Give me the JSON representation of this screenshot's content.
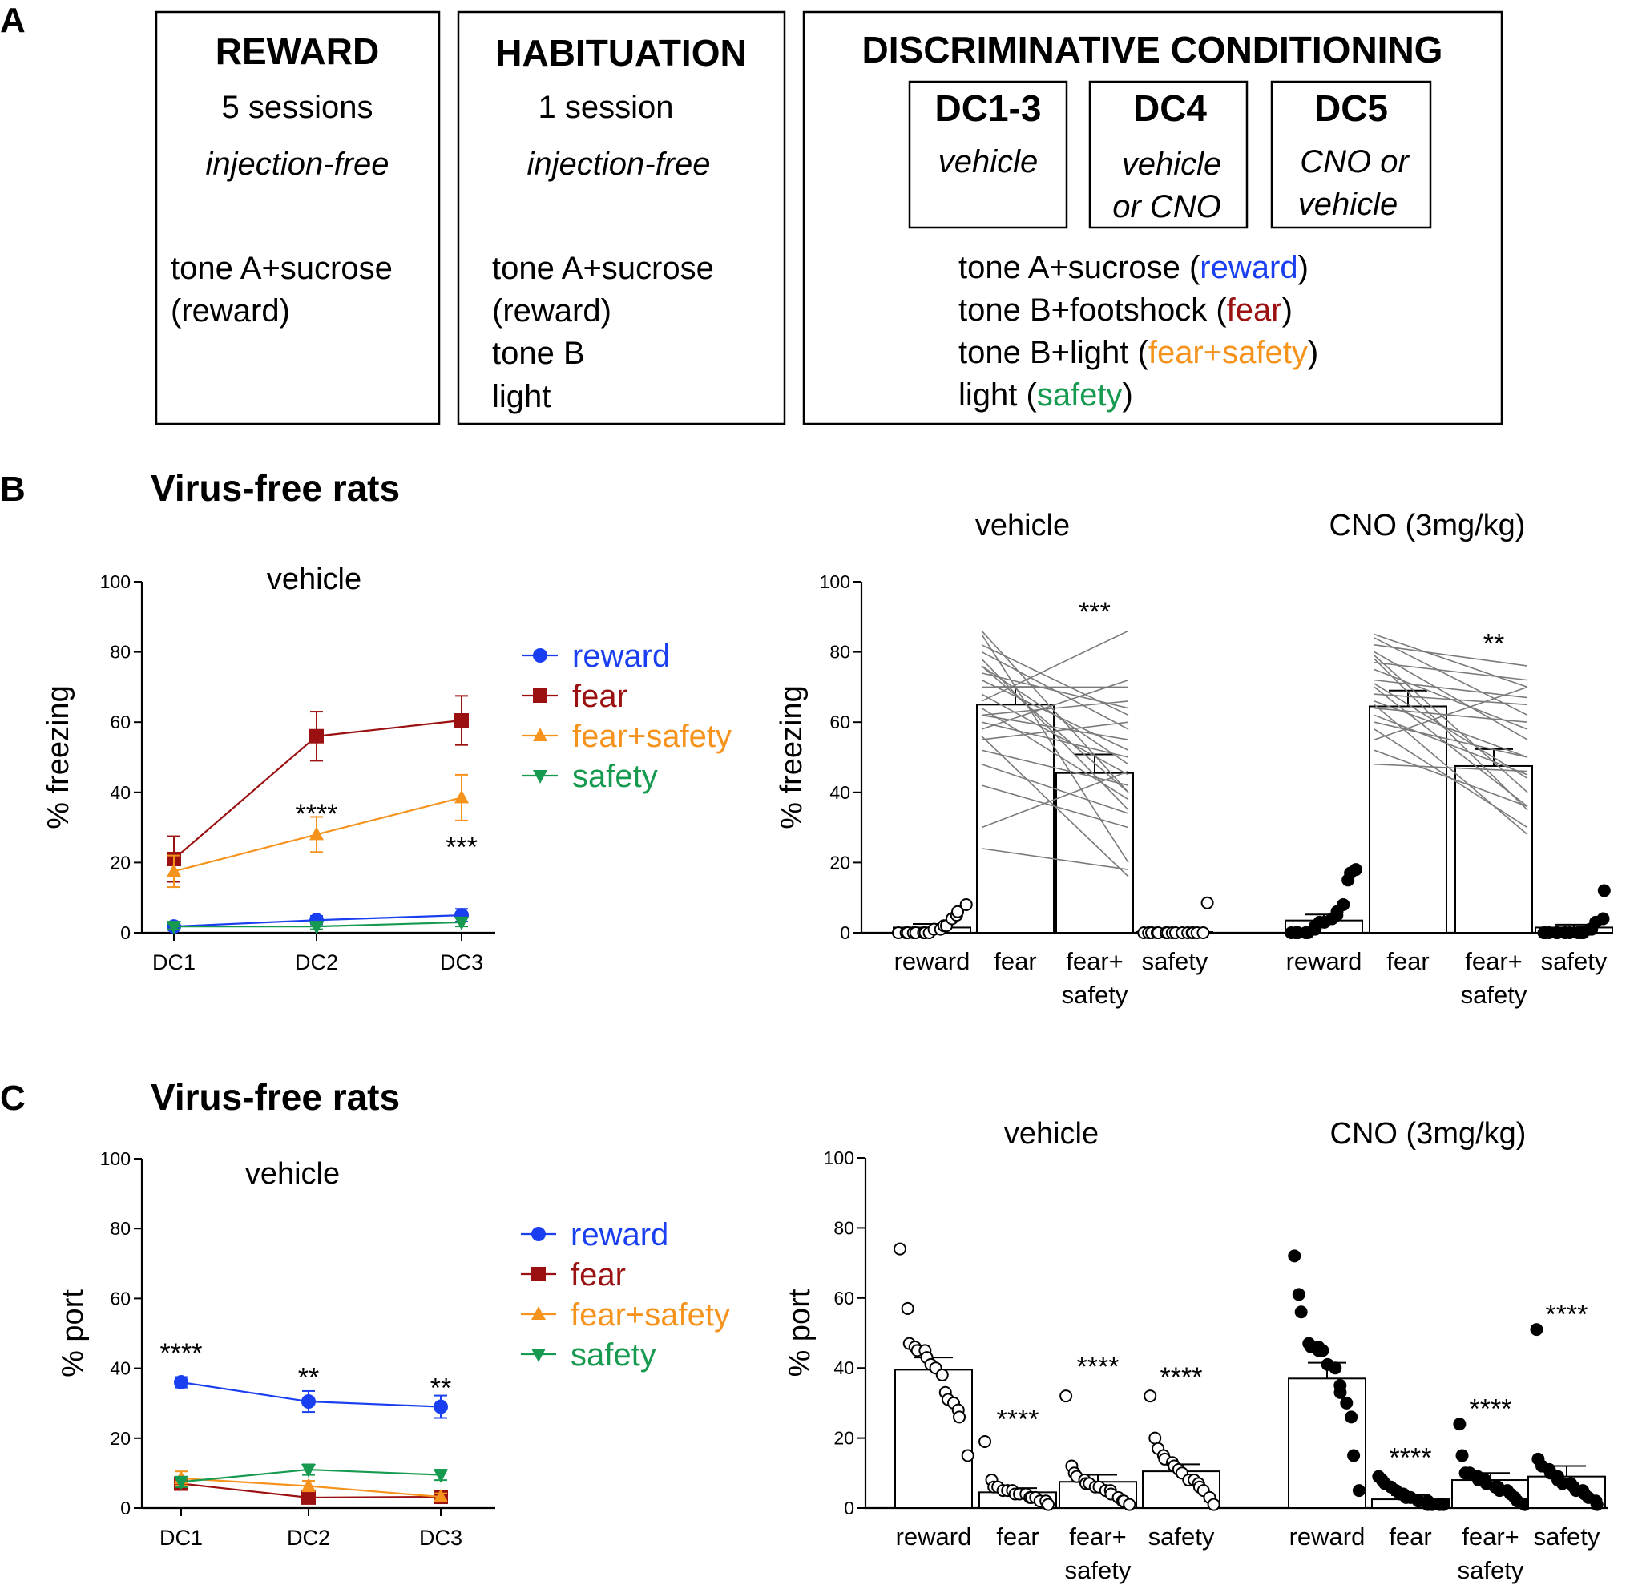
{
  "figure": {
    "panel_letters": [
      "A",
      "B",
      "C"
    ],
    "colors": {
      "reward": "#1a3ff0",
      "fear": "#9b1111",
      "fear_safety": "#f5931d",
      "safety": "#169a4f"
    }
  },
  "panelA": {
    "reward_box": {
      "title": "REWARD",
      "sessions": "5 sessions",
      "injection": "injection-free",
      "lines": [
        "tone A+sucrose",
        "(reward)"
      ]
    },
    "habituation_box": {
      "title": "HABITUATION",
      "sessions": "1 session",
      "injection": "injection-free",
      "lines": [
        "tone A+sucrose",
        "(reward)",
        "tone B",
        "light"
      ]
    },
    "dc_box": {
      "title": "DISCRIMINATIVE CONDITIONING",
      "sub": [
        {
          "title": "DC1-3",
          "lines": [
            "vehicle"
          ]
        },
        {
          "title": "DC4",
          "lines": [
            "vehicle",
            "or CNO"
          ]
        },
        {
          "title": "DC5",
          "lines": [
            "CNO or",
            "vehicle"
          ]
        }
      ],
      "trials": [
        {
          "pre": "tone A+sucrose (",
          "label": "reward",
          "post": ")",
          "key": "reward"
        },
        {
          "pre": "tone B+footshock (",
          "label": "fear",
          "post": ")",
          "key": "fear"
        },
        {
          "pre": "tone B+light (",
          "label": "fear+safety",
          "post": ")",
          "key": "fear_safety"
        },
        {
          "pre": "light (",
          "label": "safety",
          "post": ")",
          "key": "safety"
        }
      ]
    }
  },
  "panelB": {
    "title": "Virus-free rats"
  },
  "panelC": {
    "title": "Virus-free rats"
  },
  "chart_data": [
    {
      "id": "B-line",
      "type": "line",
      "title": "vehicle",
      "ylabel": "% freezing",
      "ylim": [
        0,
        100
      ],
      "yticks": [
        0,
        20,
        40,
        60,
        80,
        100
      ],
      "categories": [
        "DC1",
        "DC2",
        "DC3"
      ],
      "series": [
        {
          "name": "reward",
          "key": "reward",
          "marker": "circle",
          "values": [
            1.8,
            3.6,
            5.0
          ],
          "err": [
            1.0,
            1.2,
            1.8
          ]
        },
        {
          "name": "fear",
          "key": "fear",
          "marker": "square",
          "values": [
            21,
            56,
            60.5
          ],
          "err": [
            6.5,
            7,
            7
          ]
        },
        {
          "name": "fear+safety",
          "key": "fear_safety",
          "marker": "triangle-up",
          "values": [
            17.5,
            28,
            38.5
          ],
          "err": [
            4.5,
            5,
            6.5
          ]
        },
        {
          "name": "safety",
          "key": "safety",
          "marker": "triangle-down",
          "values": [
            1.8,
            1.8,
            3.0
          ],
          "err": [
            0.8,
            0.8,
            1.2
          ]
        }
      ],
      "annotations": [
        {
          "cat": 1,
          "y": 34.5,
          "text": "****"
        },
        {
          "cat": 2,
          "y": 25,
          "text": "***"
        }
      ]
    },
    {
      "id": "B-bar",
      "type": "bar",
      "ylabel": "% freezing",
      "ylim": [
        0,
        100
      ],
      "yticks": [
        0,
        20,
        40,
        60,
        80,
        100
      ],
      "categories": [
        "reward",
        "fear",
        "fear+\nsafety",
        "safety"
      ],
      "groups": [
        {
          "title": "vehicle",
          "filled": false,
          "values": [
            1.5,
            65,
            45.5,
            0.2
          ],
          "err": [
            1.0,
            5,
            5.3,
            0.4
          ],
          "points": [
            [
              0,
              0,
              0,
              0,
              0,
              0,
              0,
              0,
              1,
              1,
              2,
              2,
              4,
              5,
              6,
              8
            ],
            null,
            null,
            [
              0,
              0,
              0,
              0,
              0,
              0,
              0,
              0,
              0,
              0,
              0,
              0,
              0,
              0,
              0,
              8.5
            ]
          ],
          "pairs": [
            [
              86,
              40
            ],
            [
              85,
              20
            ],
            [
              82,
              62
            ],
            [
              80,
              58
            ],
            [
              78,
              35
            ],
            [
              76,
              48
            ],
            [
              74,
              64
            ],
            [
              72,
              52
            ],
            [
              70,
              70
            ],
            [
              68,
              45
            ],
            [
              66,
              86
            ],
            [
              64,
              38
            ],
            [
              62,
              55
            ],
            [
              60,
              50
            ],
            [
              58,
              72
            ],
            [
              56,
              16
            ],
            [
              55,
              60
            ],
            [
              52,
              42
            ],
            [
              48,
              34
            ],
            [
              42,
              30
            ],
            [
              30,
              46
            ],
            [
              24,
              18
            ],
            [
              76,
              40
            ],
            [
              62,
              66
            ]
          ],
          "annotation": {
            "text": "***",
            "y": 92
          }
        },
        {
          "title": "CNO (3mg/kg)",
          "filled": true,
          "values": [
            3.5,
            64.5,
            47.5,
            1.5
          ],
          "err": [
            1.7,
            4.5,
            4.8,
            0.8
          ],
          "points": [
            [
              0,
              0,
              0,
              0,
              0,
              1,
              2,
              3,
              3,
              4,
              5,
              6,
              8,
              15,
              17,
              18
            ],
            null,
            null,
            [
              0,
              0,
              0,
              0,
              0,
              0,
              0,
              0,
              0,
              0,
              0,
              1,
              1,
              3,
              4,
              12
            ]
          ],
          "pairs": [
            [
              85,
              70
            ],
            [
              84,
              62
            ],
            [
              82,
              76
            ],
            [
              80,
              55
            ],
            [
              79,
              40
            ],
            [
              78,
              35
            ],
            [
              77,
              72
            ],
            [
              75,
              58
            ],
            [
              72,
              67
            ],
            [
              71,
              44
            ],
            [
              70,
              36
            ],
            [
              68,
              65
            ],
            [
              66,
              50
            ],
            [
              65,
              28
            ],
            [
              64,
              60
            ],
            [
              62,
              45
            ],
            [
              60,
              50
            ],
            [
              58,
              30
            ],
            [
              55,
              70
            ],
            [
              52,
              36
            ],
            [
              48,
              46
            ]
          ],
          "annotation": {
            "text": "**",
            "y": 83
          }
        }
      ]
    },
    {
      "id": "C-line",
      "type": "line",
      "title": "vehicle",
      "ylabel": "% port",
      "ylim": [
        0,
        100
      ],
      "yticks": [
        0,
        20,
        40,
        60,
        80,
        100
      ],
      "categories": [
        "DC1",
        "DC2",
        "DC3"
      ],
      "series": [
        {
          "name": "reward",
          "key": "reward",
          "marker": "circle",
          "values": [
            36,
            30.5,
            29
          ],
          "err": [
            1.5,
            3,
            3.2
          ]
        },
        {
          "name": "fear",
          "key": "fear",
          "marker": "square",
          "values": [
            7,
            3,
            3.2
          ],
          "err": [
            1.2,
            1.0,
            1.0
          ]
        },
        {
          "name": "fear+safety",
          "key": "fear_safety",
          "marker": "triangle-up",
          "values": [
            8.5,
            6.3,
            3.2
          ],
          "err": [
            2.0,
            1.5,
            1.0
          ]
        },
        {
          "name": "safety",
          "key": "safety",
          "marker": "triangle-down",
          "values": [
            7.5,
            11,
            9.5
          ],
          "err": [
            1.5,
            1.5,
            1.5
          ]
        }
      ],
      "annotations": [
        {
          "cat": 0,
          "y": 45,
          "text": "****"
        },
        {
          "cat": 1,
          "y": 38,
          "text": "**"
        },
        {
          "cat": 2,
          "y": 35,
          "text": "**"
        }
      ]
    },
    {
      "id": "C-bar",
      "type": "bar",
      "ylabel": "% port",
      "ylim": [
        0,
        100
      ],
      "yticks": [
        0,
        20,
        40,
        60,
        80,
        100
      ],
      "categories": [
        "reward",
        "fear",
        "fear+\nsafety",
        "safety"
      ],
      "groups": [
        {
          "title": "vehicle",
          "filled": false,
          "values": [
            39.5,
            4.5,
            7.5,
            10.5
          ],
          "err": [
            3.5,
            1.2,
            2.0,
            2.0
          ],
          "points": [
            [
              74,
              57,
              47,
              46,
              45,
              45,
              43,
              41,
              40,
              38,
              33,
              31,
              30,
              28,
              26,
              15
            ],
            [
              19,
              8,
              6,
              6,
              5,
              5,
              5,
              4,
              4,
              4,
              3,
              3,
              3,
              2,
              2,
              1
            ],
            [
              32,
              12,
              10,
              9,
              8,
              7,
              7,
              6,
              6,
              5,
              5,
              4,
              3,
              2,
              2,
              1
            ],
            [
              32,
              20,
              17,
              15,
              14,
              13,
              12,
              11,
              10,
              8,
              8,
              7,
              6,
              5,
              3,
              1
            ]
          ],
          "annotations": [
            null,
            {
              "text": "****",
              "y": 26
            },
            {
              "text": "****",
              "y": 41
            },
            {
              "text": "****",
              "y": 38
            }
          ]
        },
        {
          "title": "CNO (3mg/kg)",
          "filled": true,
          "values": [
            37,
            2.5,
            8,
            9
          ],
          "err": [
            4.5,
            1.2,
            2.0,
            3.0
          ],
          "points": [
            [
              72,
              61,
              56,
              47,
              46,
              46,
              45,
              45,
              41,
              40,
              35,
              33,
              30,
              26,
              15,
              5
            ],
            [
              9,
              8,
              7,
              6,
              5,
              4,
              4,
              3,
              3,
              2,
              2,
              2,
              1,
              1,
              1,
              1
            ],
            [
              24,
              15,
              10,
              10,
              9,
              8,
              8,
              7,
              6,
              6,
              5,
              5,
              4,
              3,
              2,
              1
            ],
            [
              51,
              14,
              12,
              11,
              10,
              9,
              8,
              7,
              7,
              6,
              5,
              5,
              4,
              3,
              2,
              1
            ]
          ],
          "annotations": [
            null,
            {
              "text": "****",
              "y": 15
            },
            {
              "text": "****",
              "y": 29
            },
            {
              "text": "****",
              "y": 56
            }
          ]
        }
      ]
    }
  ]
}
